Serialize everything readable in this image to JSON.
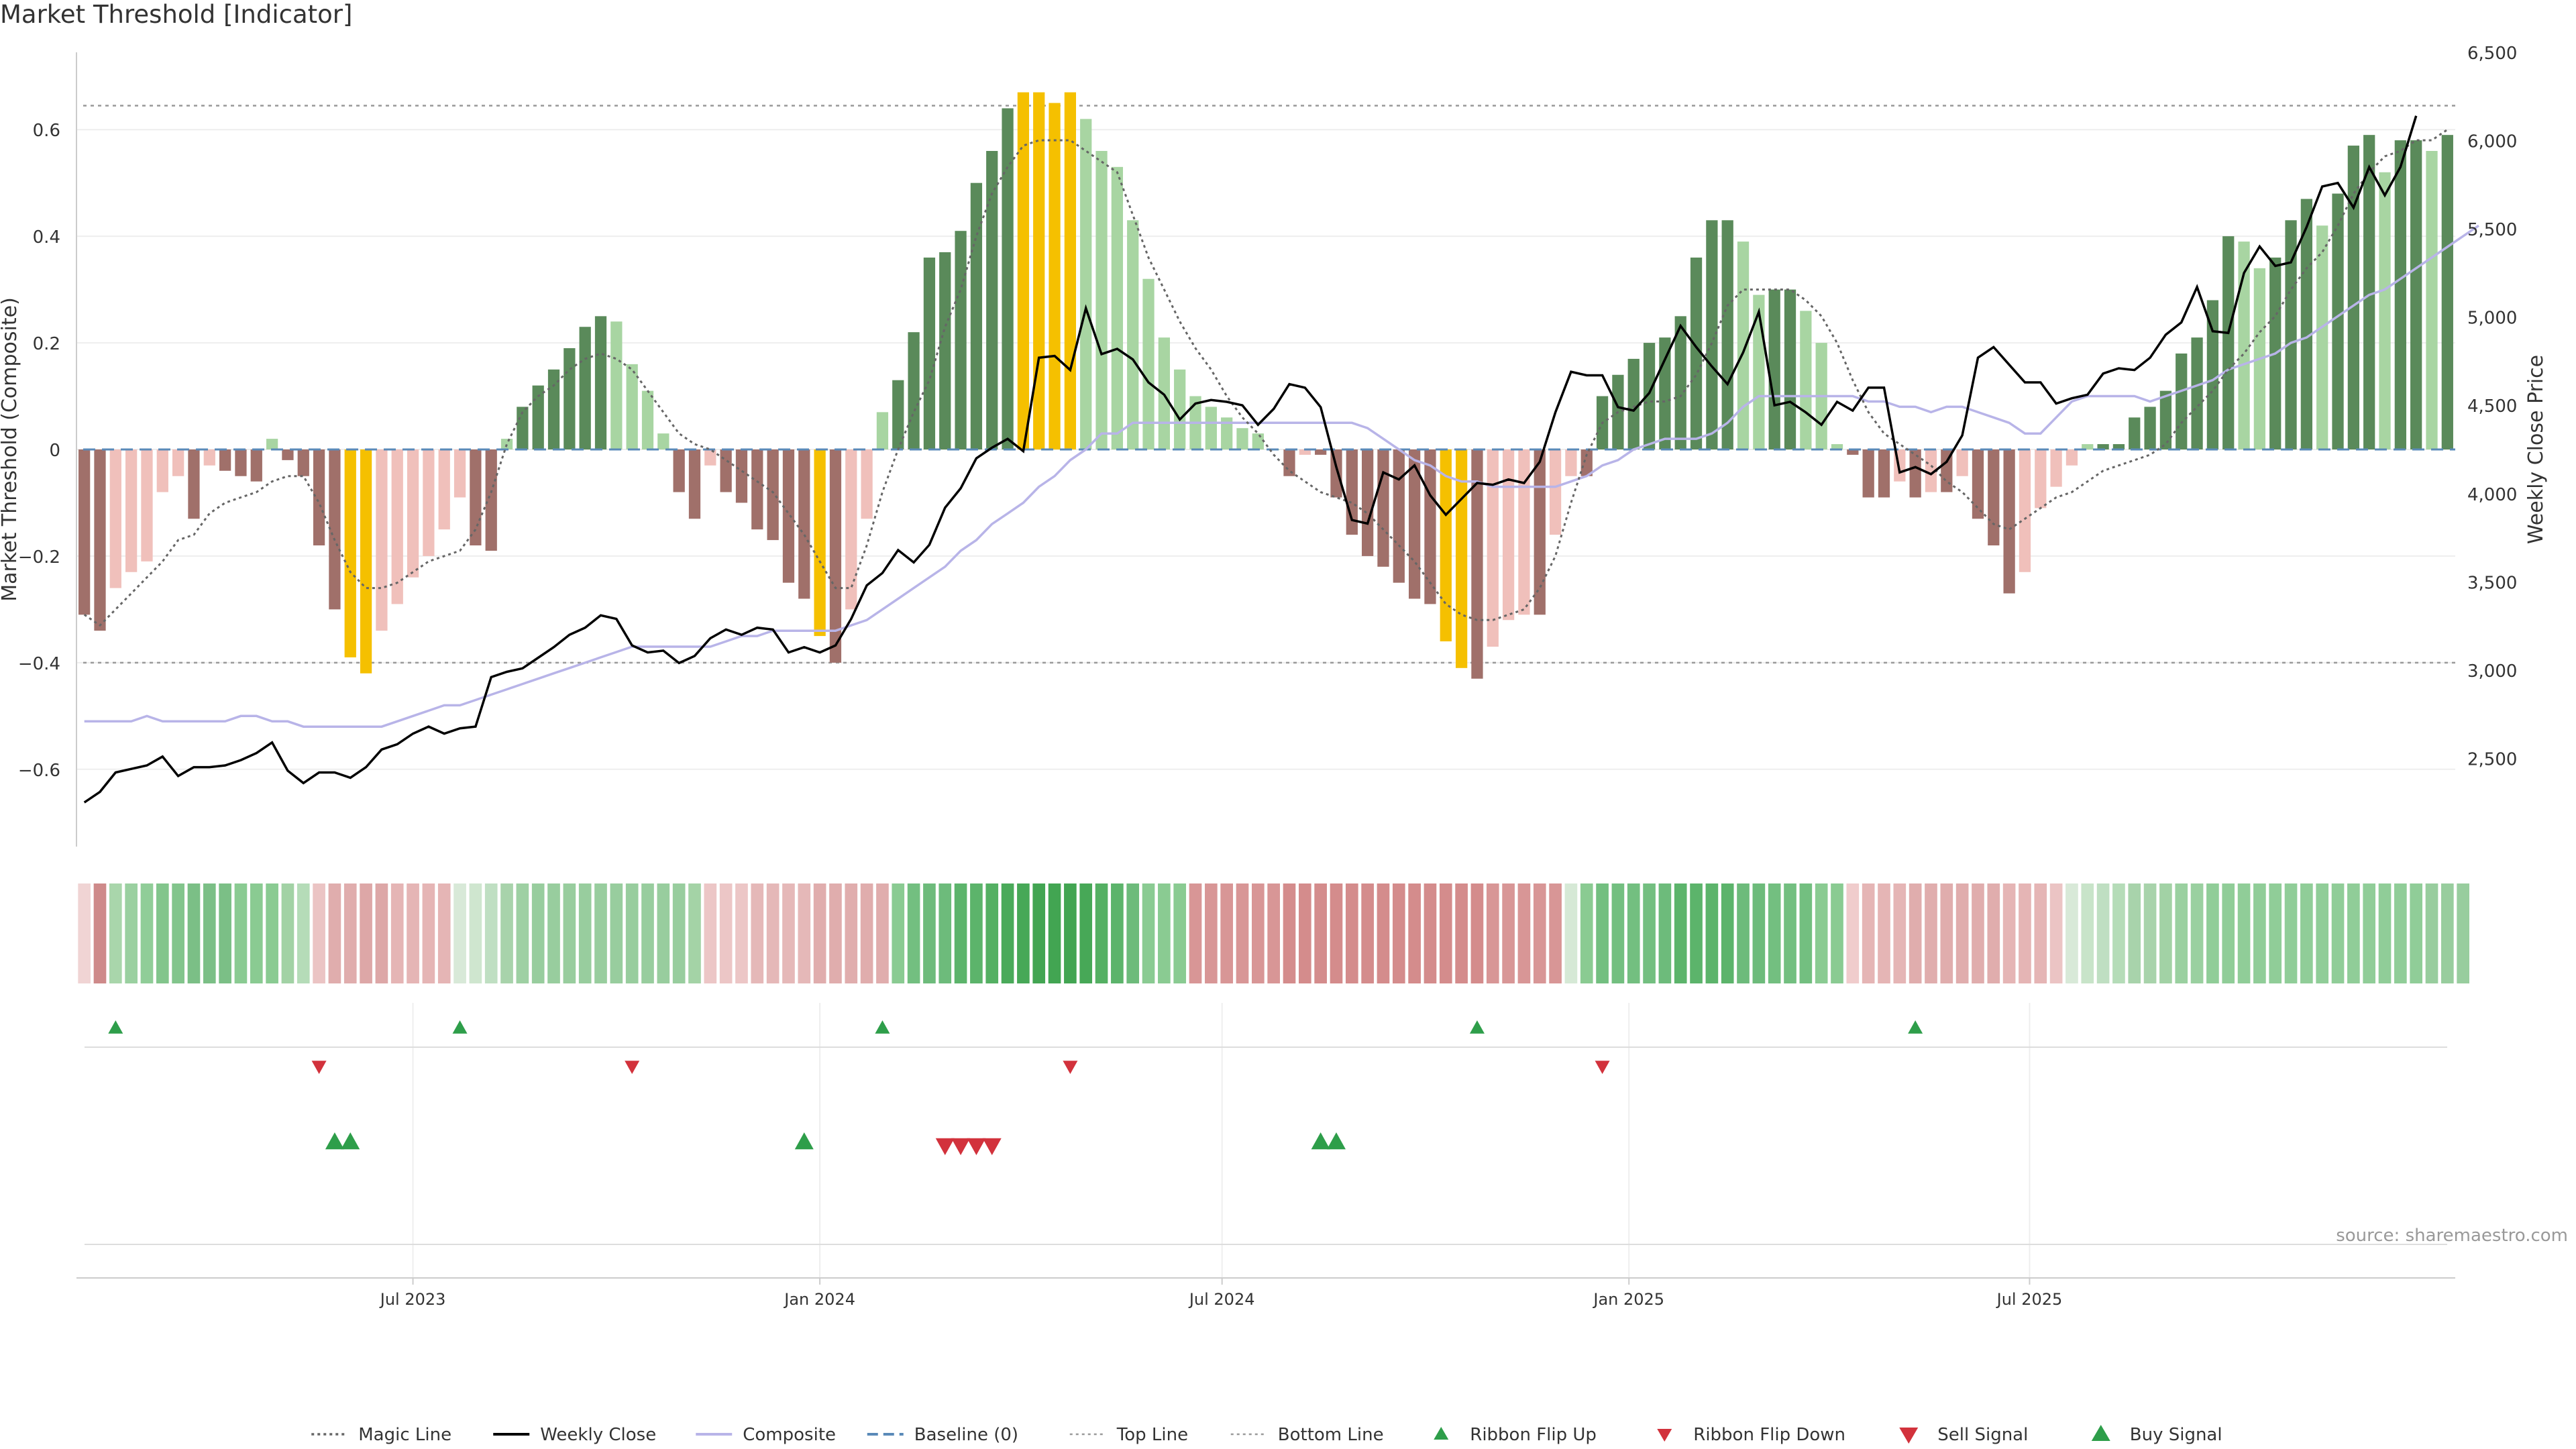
{
  "title": "Market Threshold [Indicator]",
  "source": "source: sharemaestro.com",
  "chart_data": {
    "type": "bar",
    "title": "Market Threshold [Indicator]",
    "ylabel": "Market Threshold (Composite)",
    "y2label": "Weekly Close Price",
    "ylim": [
      -0.745,
      0.745
    ],
    "y2lim": [
      2000,
      6500
    ],
    "yticks": [
      "0.6",
      "0.4",
      "0.2",
      "0",
      "−0.2",
      "−0.4",
      "−0.6"
    ],
    "y2ticks": [
      "6,500",
      "6,000",
      "5,500",
      "5,000",
      "4,500",
      "4,000",
      "3,500",
      "3,000",
      "2,500"
    ],
    "xticks": [
      "Jul 2023",
      "Jan 2024",
      "Jul 2024",
      "Jan 2025",
      "Jul 2025"
    ],
    "xtick_indices": [
      21.5,
      47.5,
      73.2,
      99.2,
      124.8
    ],
    "top_line": 0.645,
    "bottom_line": -0.4,
    "grid": true,
    "legend_position": "bottom-center",
    "colors": {
      "dark_green": "#5a8a5a",
      "light_green": "#a8d5a2",
      "dark_red": "#a0706a",
      "light_red": "#f0c0bb",
      "gold": "#f5c000",
      "close": "#000000",
      "composite": "#b8b4e8",
      "magic": "#666666",
      "baseline": "#5a8ab8",
      "buy": "#2e9e4a",
      "sell": "#d2323c"
    },
    "composite_bars": [
      -0.31,
      -0.34,
      -0.26,
      -0.23,
      -0.21,
      -0.08,
      -0.05,
      -0.13,
      -0.03,
      -0.04,
      -0.05,
      -0.06,
      0.02,
      -0.02,
      -0.05,
      -0.18,
      -0.3,
      -0.39,
      -0.42,
      -0.34,
      -0.29,
      -0.24,
      -0.2,
      -0.15,
      -0.09,
      -0.18,
      -0.19,
      0.02,
      0.08,
      0.12,
      0.15,
      0.19,
      0.23,
      0.25,
      0.24,
      0.16,
      0.11,
      0.03,
      -0.08,
      -0.13,
      -0.03,
      -0.08,
      -0.1,
      -0.15,
      -0.17,
      -0.25,
      -0.28,
      -0.35,
      -0.4,
      -0.3,
      -0.13,
      0.07,
      0.13,
      0.22,
      0.36,
      0.37,
      0.41,
      0.5,
      0.56,
      0.64,
      0.67,
      0.67,
      0.65,
      0.67,
      0.62,
      0.56,
      0.53,
      0.43,
      0.32,
      0.21,
      0.15,
      0.1,
      0.08,
      0.06,
      0.04,
      0.03,
      0.0,
      -0.05,
      -0.01,
      -0.01,
      -0.09,
      -0.16,
      -0.2,
      -0.22,
      -0.25,
      -0.28,
      -0.29,
      -0.36,
      -0.41,
      -0.43,
      -0.37,
      -0.32,
      -0.31,
      -0.31,
      -0.16,
      -0.05,
      -0.05,
      0.1,
      0.14,
      0.17,
      0.2,
      0.21,
      0.25,
      0.36,
      0.43,
      0.43,
      0.39,
      0.29,
      0.3,
      0.3,
      0.26,
      0.2,
      0.01,
      -0.01,
      -0.09,
      -0.09,
      -0.06,
      -0.09,
      -0.08,
      -0.08,
      -0.05,
      -0.13,
      -0.18,
      -0.27,
      -0.23,
      -0.11,
      -0.07,
      -0.03,
      0.01,
      0.01,
      0.01,
      0.06,
      0.08,
      0.11,
      0.18,
      0.21,
      0.28,
      0.4,
      0.39,
      0.34,
      0.36,
      0.43,
      0.47,
      0.42,
      0.48,
      0.57,
      0.59,
      0.52,
      0.58,
      0.58,
      0.56,
      0.59
    ],
    "gold_bars": [
      17,
      18,
      47,
      60,
      61,
      62,
      63,
      87,
      88
    ],
    "magic_line": [
      -0.31,
      -0.33,
      -0.3,
      -0.27,
      -0.24,
      -0.21,
      -0.17,
      -0.16,
      -0.12,
      -0.1,
      -0.09,
      -0.08,
      -0.06,
      -0.05,
      -0.05,
      -0.1,
      -0.17,
      -0.23,
      -0.26,
      -0.26,
      -0.25,
      -0.23,
      -0.21,
      -0.2,
      -0.19,
      -0.15,
      -0.08,
      0.01,
      0.07,
      0.1,
      0.12,
      0.15,
      0.17,
      0.18,
      0.17,
      0.15,
      0.11,
      0.07,
      0.03,
      0.01,
      0.0,
      -0.02,
      -0.04,
      -0.06,
      -0.08,
      -0.12,
      -0.16,
      -0.21,
      -0.26,
      -0.26,
      -0.18,
      -0.08,
      0.0,
      0.07,
      0.13,
      0.23,
      0.3,
      0.4,
      0.48,
      0.53,
      0.57,
      0.58,
      0.58,
      0.58,
      0.56,
      0.54,
      0.52,
      0.44,
      0.36,
      0.3,
      0.24,
      0.19,
      0.15,
      0.1,
      0.06,
      0.03,
      -0.01,
      -0.04,
      -0.06,
      -0.08,
      -0.09,
      -0.1,
      -0.12,
      -0.15,
      -0.18,
      -0.21,
      -0.25,
      -0.29,
      -0.31,
      -0.32,
      -0.32,
      -0.31,
      -0.3,
      -0.26,
      -0.2,
      -0.1,
      -0.01,
      0.05,
      0.07,
      0.08,
      0.09,
      0.09,
      0.1,
      0.14,
      0.2,
      0.27,
      0.3,
      0.3,
      0.3,
      0.3,
      0.28,
      0.25,
      0.2,
      0.13,
      0.07,
      0.03,
      0.01,
      -0.01,
      -0.03,
      -0.06,
      -0.08,
      -0.11,
      -0.14,
      -0.15,
      -0.13,
      -0.11,
      -0.09,
      -0.08,
      -0.06,
      -0.04,
      -0.03,
      -0.02,
      -0.01,
      0.01,
      0.05,
      0.08,
      0.11,
      0.15,
      0.18,
      0.22,
      0.25,
      0.3,
      0.34,
      0.37,
      0.42,
      0.48,
      0.52,
      0.55,
      0.56,
      0.58,
      0.58,
      0.6
    ],
    "composite_line": [
      -0.51,
      -0.51,
      -0.51,
      -0.51,
      -0.5,
      -0.51,
      -0.51,
      -0.51,
      -0.51,
      -0.51,
      -0.5,
      -0.5,
      -0.51,
      -0.51,
      -0.52,
      -0.52,
      -0.52,
      -0.52,
      -0.52,
      -0.52,
      -0.51,
      -0.5,
      -0.49,
      -0.48,
      -0.48,
      -0.47,
      -0.46,
      -0.45,
      -0.44,
      -0.43,
      -0.42,
      -0.41,
      -0.4,
      -0.39,
      -0.38,
      -0.37,
      -0.37,
      -0.37,
      -0.37,
      -0.37,
      -0.37,
      -0.36,
      -0.35,
      -0.35,
      -0.34,
      -0.34,
      -0.34,
      -0.34,
      -0.34,
      -0.33,
      -0.32,
      -0.3,
      -0.28,
      -0.26,
      -0.24,
      -0.22,
      -0.19,
      -0.17,
      -0.14,
      -0.12,
      -0.1,
      -0.07,
      -0.05,
      -0.02,
      0.0,
      0.03,
      0.03,
      0.05,
      0.05,
      0.05,
      0.05,
      0.05,
      0.05,
      0.05,
      0.05,
      0.05,
      0.05,
      0.05,
      0.05,
      0.05,
      0.05,
      0.05,
      0.04,
      0.02,
      0.0,
      -0.02,
      -0.03,
      -0.05,
      -0.06,
      -0.06,
      -0.07,
      -0.07,
      -0.07,
      -0.07,
      -0.07,
      -0.06,
      -0.05,
      -0.03,
      -0.02,
      0.0,
      0.01,
      0.02,
      0.02,
      0.02,
      0.03,
      0.05,
      0.08,
      0.1,
      0.1,
      0.1,
      0.1,
      0.1,
      0.1,
      0.1,
      0.09,
      0.09,
      0.08,
      0.08,
      0.07,
      0.08,
      0.08,
      0.07,
      0.06,
      0.05,
      0.03,
      0.03,
      0.06,
      0.09,
      0.1,
      0.1,
      0.1,
      0.1,
      0.09,
      0.1,
      0.11,
      0.12,
      0.13,
      0.15,
      0.16,
      0.17,
      0.18,
      0.2,
      0.21,
      0.23,
      0.25,
      0.27,
      0.29,
      0.3,
      0.32,
      0.34,
      0.36,
      0.38,
      0.4,
      0.42
    ],
    "weekly_close": [
      2250,
      2310,
      2420,
      2440,
      2460,
      2510,
      2400,
      2450,
      2450,
      2460,
      2490,
      2530,
      2590,
      2430,
      2360,
      2420,
      2420,
      2390,
      2450,
      2550,
      2580,
      2640,
      2680,
      2640,
      2670,
      2680,
      2960,
      2990,
      3010,
      3070,
      3130,
      3200,
      3240,
      3310,
      3290,
      3140,
      3100,
      3110,
      3040,
      3080,
      3180,
      3230,
      3200,
      3240,
      3230,
      3100,
      3130,
      3100,
      3140,
      3290,
      3480,
      3550,
      3680,
      3610,
      3710,
      3920,
      4030,
      4200,
      4260,
      4310,
      4240,
      4770,
      4780,
      4700,
      5050,
      4790,
      4820,
      4760,
      4630,
      4560,
      4420,
      4510,
      4530,
      4520,
      4500,
      4390,
      4480,
      4620,
      4600,
      4490,
      4150,
      3850,
      3830,
      4120,
      4080,
      4160,
      3990,
      3880,
      3970,
      4060,
      4050,
      4080,
      4060,
      4180,
      4460,
      4690,
      4670,
      4670,
      4490,
      4470,
      4570,
      4760,
      4950,
      4830,
      4720,
      4620,
      4800,
      5030,
      4500,
      4520,
      4460,
      4390,
      4520,
      4470,
      4600,
      4600,
      4120,
      4150,
      4110,
      4180,
      4330,
      4770,
      4830,
      4730,
      4630,
      4630,
      4510,
      4540,
      4560,
      4680,
      4710,
      4700,
      4770,
      4900,
      4970,
      5170,
      4920,
      4910,
      5250,
      5400,
      5290,
      5310,
      5510,
      5740,
      5760,
      5620,
      5850,
      5690,
      5850,
      6140
    ],
    "ribbon_colors": [
      "#f0d4d4",
      "#ce8a8a",
      "#a9d6ab",
      "#9ad0a0",
      "#90cd98",
      "#82c58c",
      "#82c58c",
      "#7bbf86",
      "#7bbf86",
      "#7bbf86",
      "#8acb92",
      "#8acb92",
      "#8acb92",
      "#a2d2a5",
      "#b5dcb8",
      "#ebc4c4",
      "#e0adad",
      "#e0adad",
      "#dda7a7",
      "#dda7a7",
      "#e5b5b5",
      "#e5b5b5",
      "#e5b5b5",
      "#e5b5b5",
      "#d8e9d8",
      "#cfe6cf",
      "#bfdfc2",
      "#a8d3ab",
      "#9ed0a3",
      "#98cd9e",
      "#98cd9e",
      "#98cd9e",
      "#98cd9e",
      "#98cd9e",
      "#98cd9e",
      "#98cd9e",
      "#98cd9e",
      "#98cd9e",
      "#98cd9e",
      "#a4d3a6",
      "#ecc6c6",
      "#ecc6c6",
      "#ecc6c6",
      "#e5b8b8",
      "#e5b8b8",
      "#e5b8b8",
      "#e5b8b8",
      "#e0adad",
      "#e0adad",
      "#e0adad",
      "#e0adad",
      "#e0adad",
      "#8acb92",
      "#73bf80",
      "#6dbb7b",
      "#6dbb7b",
      "#5cb46b",
      "#5cb46b",
      "#54b063",
      "#4aaa5a",
      "#47a857",
      "#42a552",
      "#42a552",
      "#42a552",
      "#47a857",
      "#54b063",
      "#5cb46b",
      "#6dbb7b",
      "#8acb92",
      "#8acb92",
      "#8acb92",
      "#d89696",
      "#d89696",
      "#d89696",
      "#d89696",
      "#d89696",
      "#d89696",
      "#d48c8c",
      "#d48c8c",
      "#d48c8c",
      "#d48c8c",
      "#d48c8c",
      "#d48c8c",
      "#d48c8c",
      "#d48c8c",
      "#d48c8c",
      "#d48c8c",
      "#d48c8c",
      "#d48c8c",
      "#d48c8c",
      "#d89696",
      "#d89696",
      "#d89696",
      "#d89696",
      "#d89696",
      "#d6e9d6",
      "#8acb92",
      "#73bf80",
      "#73bf80",
      "#73bf80",
      "#73bf80",
      "#6dbb7b",
      "#5cb46b",
      "#5cb46b",
      "#5cb46b",
      "#5cb46b",
      "#6dbb7b",
      "#6dbb7b",
      "#73bf80",
      "#73bf80",
      "#73bf80",
      "#8acb92",
      "#8acb92",
      "#f0cccc",
      "#e5b5b5",
      "#e5b5b5",
      "#e5b5b5",
      "#e0adad",
      "#e0adad",
      "#e0adad",
      "#e0adad",
      "#e0adad",
      "#e0adad",
      "#e5b5b5",
      "#e5b5b5",
      "#e5b5b5",
      "#ebc4c4",
      "#d8e9d8",
      "#c8e4c9",
      "#bfdfc2",
      "#b5dcb8",
      "#a8d3ab",
      "#a8d3ab",
      "#a2d2a5",
      "#9ad0a0",
      "#9ad0a0",
      "#90cd98",
      "#90cd98",
      "#90cd98",
      "#90cd98",
      "#90cd98",
      "#90cd98",
      "#90cd98",
      "#90cd98",
      "#90cd98",
      "#90cd98",
      "#90cd98",
      "#90cd98",
      "#90cd98",
      "#90cd98",
      "#98cd9e",
      "#98cd9e",
      "#98cd9e"
    ],
    "ribbon_flip_up": [
      2,
      24,
      51,
      89,
      117
    ],
    "ribbon_flip_down": [
      15,
      35,
      63,
      97
    ],
    "buy_signals": [
      16,
      17,
      46,
      79,
      80
    ],
    "sell_signals": [
      55,
      56,
      57,
      58
    ]
  },
  "legend": [
    {
      "label": "Magic Line",
      "kind": "dotted",
      "color": "#666666"
    },
    {
      "label": "Weekly Close",
      "kind": "solid",
      "color": "#000000"
    },
    {
      "label": "Composite",
      "kind": "solid",
      "color": "#b8b4e8"
    },
    {
      "label": "Baseline (0)",
      "kind": "dashed",
      "color": "#5a8ab8"
    },
    {
      "label": "Top Line",
      "kind": "dotted-light",
      "color": "#999999"
    },
    {
      "label": "Bottom Line",
      "kind": "dotted-light",
      "color": "#999999"
    },
    {
      "label": "Ribbon Flip Up",
      "kind": "tri-up-small",
      "color": "#2e9e4a"
    },
    {
      "label": "Ribbon Flip Down",
      "kind": "tri-down-small",
      "color": "#d2323c"
    },
    {
      "label": "Sell Signal",
      "kind": "tri-down",
      "color": "#d2323c"
    },
    {
      "label": "Buy Signal",
      "kind": "tri-up",
      "color": "#2e9e4a"
    }
  ]
}
